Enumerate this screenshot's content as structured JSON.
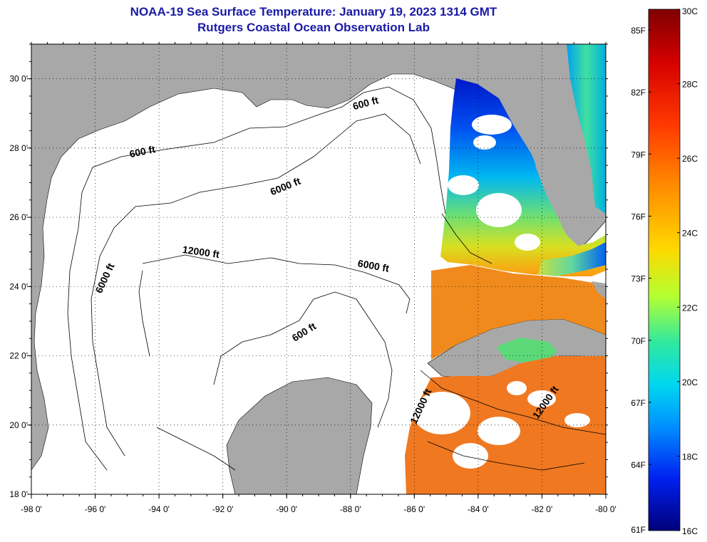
{
  "header": {
    "title": "NOAA-19 Sea Surface Temperature:  January 19, 2023 1314 GMT",
    "subtitle": "Rutgers Coastal Ocean Observation Lab"
  },
  "map": {
    "lon_range": [
      -98,
      -80
    ],
    "lat_range": [
      18,
      31
    ],
    "lon_ticks": [
      "-98 0'",
      "-96 0'",
      "-94 0'",
      "-92 0'",
      "-90 0'",
      "-88 0'",
      "-86 0'",
      "-84 0'",
      "-82 0'",
      "-80 0'"
    ],
    "lat_ticks": [
      "18 0'",
      "20 0'",
      "22 0'",
      "24 0'",
      "26 0'",
      "28 0'",
      "30 0'"
    ],
    "grid": "dotted",
    "land_color": "#a8a8a8",
    "no_data_color": "#ffffff",
    "contours": [
      {
        "label": "600 ft",
        "lon": -87.5,
        "lat": 29.2
      },
      {
        "label": "600 ft",
        "lon": -94.5,
        "lat": 27.8
      },
      {
        "label": "6000 ft",
        "lon": -90.0,
        "lat": 26.8
      },
      {
        "label": "12000 ft",
        "lon": -92.7,
        "lat": 24.9
      },
      {
        "label": "6000 ft",
        "lon": -87.3,
        "lat": 24.5
      },
      {
        "label": "6000 ft",
        "lon": -95.6,
        "lat": 24.2
      },
      {
        "label": "600 ft",
        "lon": -89.4,
        "lat": 22.6
      },
      {
        "label": "12000 ft",
        "lon": -85.7,
        "lat": 20.5
      },
      {
        "label": "12000 ft",
        "lon": -81.8,
        "lat": 20.6
      }
    ]
  },
  "colorbar": {
    "celsius_labels": [
      "30C",
      "28C",
      "26C",
      "24C",
      "22C",
      "20C",
      "18C",
      "16C"
    ],
    "fahrenheit_labels": [
      "85F",
      "82F",
      "79F",
      "76F",
      "73F",
      "70F",
      "67F",
      "64F",
      "61F"
    ],
    "range_c": [
      16,
      30
    ],
    "top_color": "#800000",
    "bottom_color": "#000080"
  }
}
